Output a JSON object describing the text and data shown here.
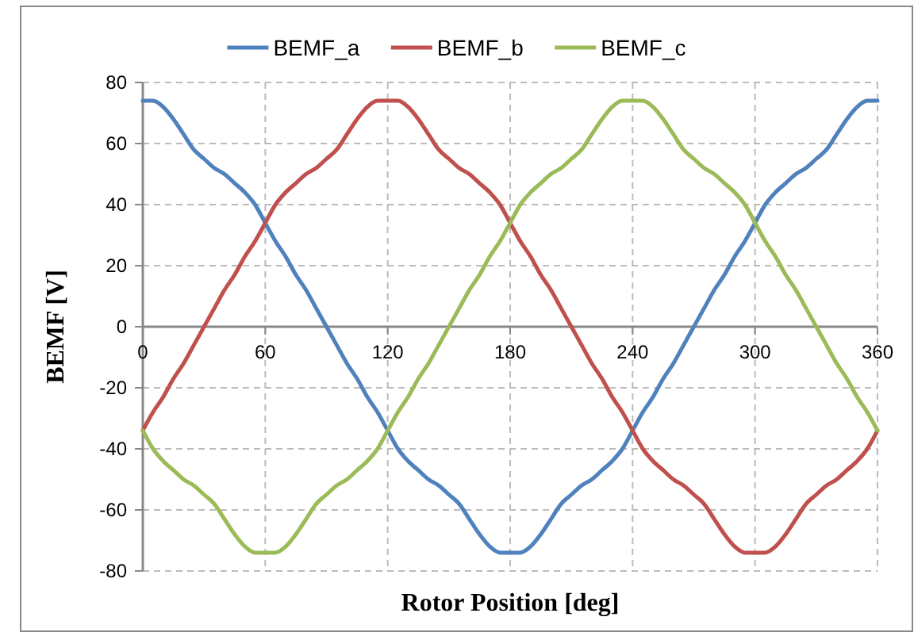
{
  "chart_data": {
    "type": "line",
    "xlabel": "Rotor Position [deg]",
    "ylabel": "BEMF [V]",
    "x": [
      0,
      5,
      10,
      15,
      20,
      25,
      30,
      35,
      40,
      45,
      50,
      55,
      60,
      65,
      70,
      75,
      80,
      85,
      90,
      95,
      100,
      105,
      110,
      115,
      120,
      125,
      130,
      135,
      140,
      145,
      150,
      155,
      160,
      165,
      170,
      175,
      180,
      185,
      190,
      195,
      200,
      205,
      210,
      215,
      220,
      225,
      230,
      235,
      240,
      245,
      250,
      255,
      260,
      265,
      270,
      275,
      280,
      285,
      290,
      295,
      300,
      305,
      310,
      315,
      320,
      325,
      330,
      335,
      340,
      345,
      350,
      355,
      360
    ],
    "series": [
      {
        "name": "BEMF_a",
        "color": "#4f81bd",
        "values": [
          74,
          74,
          72,
          68,
          63,
          58,
          55,
          52,
          50,
          47,
          44,
          40,
          34,
          28,
          23,
          17,
          12,
          6,
          0,
          -6,
          -12,
          -17,
          -23,
          -28,
          -34,
          -40,
          -44,
          -47,
          -50,
          -52,
          -55,
          -58,
          -63,
          -68,
          -72,
          -74,
          -74,
          -74,
          -72,
          -68,
          -63,
          -58,
          -55,
          -52,
          -50,
          -47,
          -44,
          -40,
          -34,
          -28,
          -23,
          -17,
          -12,
          -6,
          0,
          6,
          12,
          17,
          23,
          28,
          34,
          40,
          44,
          47,
          50,
          52,
          55,
          58,
          63,
          68,
          72,
          74,
          74
        ]
      },
      {
        "name": "BEMF_b",
        "color": "#c0504d",
        "values": [
          -34,
          -28,
          -23,
          -17,
          -12,
          -6,
          0,
          6,
          12,
          17,
          23,
          28,
          34,
          40,
          44,
          47,
          50,
          52,
          55,
          58,
          63,
          68,
          72,
          74,
          74,
          74,
          72,
          68,
          63,
          58,
          55,
          52,
          50,
          47,
          44,
          40,
          34,
          28,
          23,
          17,
          12,
          6,
          0,
          -6,
          -12,
          -17,
          -23,
          -28,
          -34,
          -40,
          -44,
          -47,
          -50,
          -52,
          -55,
          -58,
          -63,
          -68,
          -72,
          -74,
          -74,
          -74,
          -72,
          -68,
          -63,
          -58,
          -55,
          -52,
          -50,
          -47,
          -44,
          -40,
          -34
        ]
      },
      {
        "name": "BEMF_c",
        "color": "#9bbb59",
        "values": [
          -34,
          -40,
          -44,
          -47,
          -50,
          -52,
          -55,
          -58,
          -63,
          -68,
          -72,
          -74,
          -74,
          -74,
          -72,
          -68,
          -63,
          -58,
          -55,
          -52,
          -50,
          -47,
          -44,
          -40,
          -34,
          -28,
          -23,
          -17,
          -12,
          -6,
          0,
          6,
          12,
          17,
          23,
          28,
          34,
          40,
          44,
          47,
          50,
          52,
          55,
          58,
          63,
          68,
          72,
          74,
          74,
          74,
          72,
          68,
          63,
          58,
          55,
          52,
          50,
          47,
          44,
          40,
          34,
          28,
          23,
          17,
          12,
          6,
          0,
          -6,
          -12,
          -17,
          -23,
          -28,
          -34
        ]
      }
    ],
    "xlim": [
      0,
      360
    ],
    "xticks": [
      0,
      60,
      120,
      180,
      240,
      300,
      360
    ],
    "ylim": [
      -80,
      80
    ],
    "yticks": [
      -80,
      -60,
      -40,
      -20,
      0,
      20,
      40,
      60,
      80
    ],
    "grid": true,
    "legend": "top",
    "line_style": "solid",
    "marker": "none"
  }
}
